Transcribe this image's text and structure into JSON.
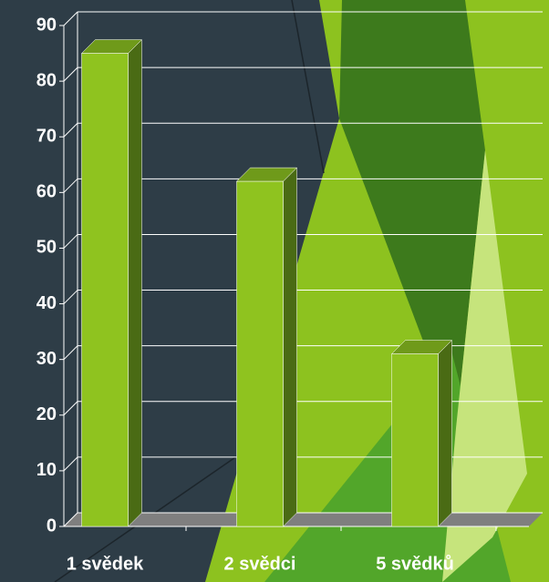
{
  "chart_data": {
    "type": "bar3d",
    "categories": [
      "1 svědek",
      "2 svědci",
      "5 svědků"
    ],
    "values": [
      85,
      62,
      31
    ],
    "color": "#8fc31f",
    "ylim": [
      0,
      90
    ],
    "yticks": [
      0,
      10,
      20,
      30,
      40,
      50,
      60,
      70,
      80,
      90
    ],
    "grid": true
  }
}
